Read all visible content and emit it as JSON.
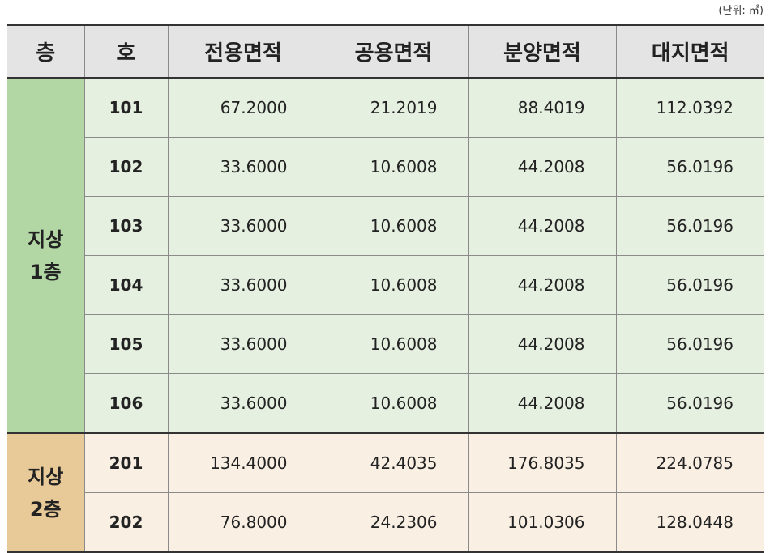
{
  "unit_label": "(단위: ㎡)",
  "headers": [
    "층",
    "호",
    "전용면적",
    "공용면적",
    "분양면적",
    "대지면적"
  ],
  "groups": [
    {
      "floor_line1": "지상",
      "floor_line2": "1층",
      "rows": [
        {
          "unit": "101",
          "exclusive": "67.2000",
          "common": "21.2019",
          "sale": "88.4019",
          "land": "112.0392"
        },
        {
          "unit": "102",
          "exclusive": "33.6000",
          "common": "10.6008",
          "sale": "44.2008",
          "land": "56.0196"
        },
        {
          "unit": "103",
          "exclusive": "33.6000",
          "common": "10.6008",
          "sale": "44.2008",
          "land": "56.0196"
        },
        {
          "unit": "104",
          "exclusive": "33.6000",
          "common": "10.6008",
          "sale": "44.2008",
          "land": "56.0196"
        },
        {
          "unit": "105",
          "exclusive": "33.6000",
          "common": "10.6008",
          "sale": "44.2008",
          "land": "56.0196"
        },
        {
          "unit": "106",
          "exclusive": "33.6000",
          "common": "10.6008",
          "sale": "44.2008",
          "land": "56.0196"
        }
      ]
    },
    {
      "floor_line1": "지상",
      "floor_line2": "2층",
      "rows": [
        {
          "unit": "201",
          "exclusive": "134.4000",
          "common": "42.4035",
          "sale": "176.8035",
          "land": "224.0785"
        },
        {
          "unit": "202",
          "exclusive": "76.8000",
          "common": "24.2306",
          "sale": "101.0306",
          "land": "128.0448"
        }
      ]
    }
  ]
}
